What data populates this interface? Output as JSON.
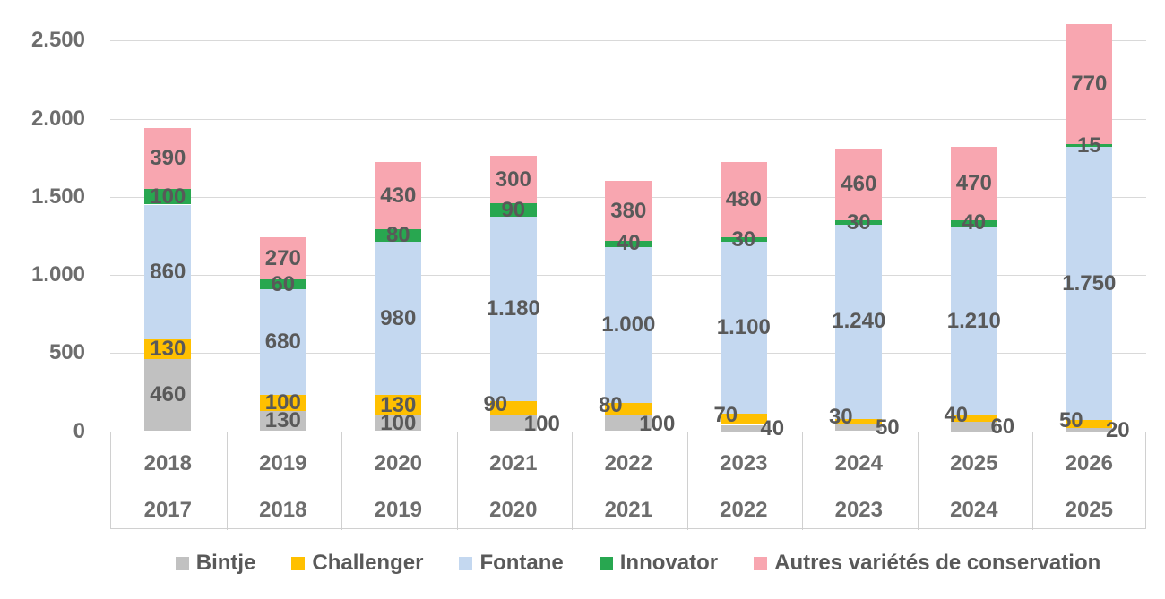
{
  "chart_data": {
    "type": "bar",
    "stacked": true,
    "title": "",
    "x_labels_top": [
      "2018",
      "2019",
      "2020",
      "2021",
      "2022",
      "2023",
      "2024",
      "2025",
      "2026"
    ],
    "x_labels_bottom": [
      "2017",
      "2018",
      "2019",
      "2020",
      "2021",
      "2022",
      "2023",
      "2024",
      "2025"
    ],
    "series": [
      {
        "name": "Bintje",
        "color": "#C1C1C1",
        "values": [
          460,
          130,
          100,
          100,
          100,
          40,
          50,
          60,
          20
        ]
      },
      {
        "name": "Challenger",
        "color": "#FFC000",
        "values": [
          130,
          100,
          130,
          90,
          80,
          70,
          30,
          40,
          50
        ]
      },
      {
        "name": "Fontane",
        "color": "#C4D8F0",
        "values": [
          860,
          680,
          980,
          1180,
          1000,
          1100,
          1240,
          1210,
          1750
        ]
      },
      {
        "name": "Innovator",
        "color": "#28A750",
        "values": [
          100,
          60,
          80,
          90,
          40,
          30,
          30,
          40,
          15
        ]
      },
      {
        "name": "Autres variétés de conservation",
        "color": "#F8A6B0",
        "values": [
          390,
          270,
          430,
          300,
          380,
          480,
          460,
          470,
          770
        ]
      }
    ],
    "y_tick_values": [
      0,
      500,
      1000,
      1500,
      2000,
      2500
    ],
    "ylim": [
      0,
      2500
    ],
    "grid": true,
    "legend_position": "bottom",
    "number_format": "thousands-dot",
    "label_color": "#595959",
    "label_placement_overrides": [
      {
        "series": "Challenger",
        "side": "left",
        "from_index": 3
      },
      {
        "series": "Bintje",
        "side": "right",
        "from_index": 3
      }
    ]
  }
}
